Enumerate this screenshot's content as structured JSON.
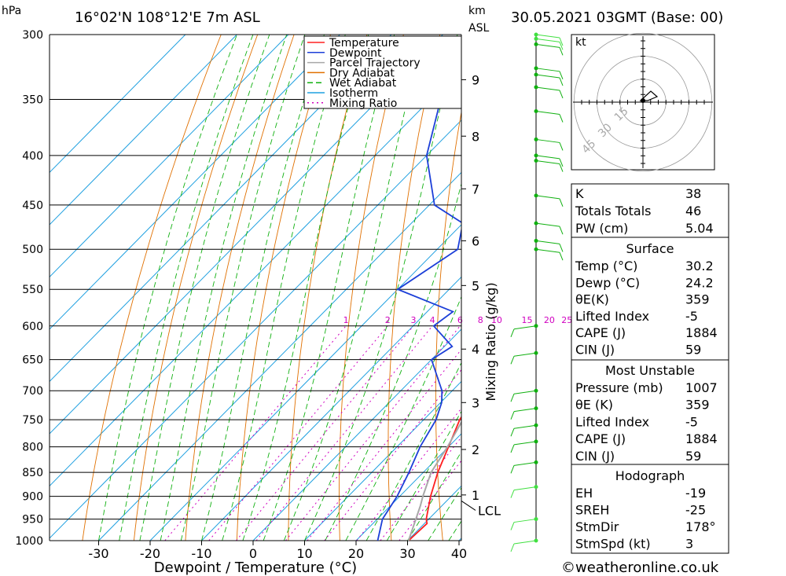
{
  "header": {
    "pressure_unit": "hPa",
    "location": "16°02'N  108°12'E  7m  ASL",
    "height_unit": "km",
    "height_unit2": "ASL",
    "datetime": "30.05.2021  03GMT  (Base: 00)"
  },
  "footer": {
    "credit": "©weatheronline.co.uk"
  },
  "colors": {
    "temperature": "#ff2020",
    "dewpoint": "#1c3fd8",
    "parcel": "#a8a8a8",
    "dry_adiabat": "#e07000",
    "wet_adiabat": "#10b010",
    "isotherm": "#1fa0e0",
    "mixing_ratio": "#d000c0"
  },
  "chart_data": {
    "type": "line",
    "title": "Skew-T log-P sounding",
    "xlabel": "Dewpoint / Temperature (°C)",
    "ylabel": "hPa",
    "right_label": "Mixing Ratio (g/kg)",
    "xlim": [
      -40,
      40
    ],
    "ylim": [
      1000,
      300
    ],
    "x_ticks": [
      "-30",
      "-20",
      "-10",
      "0",
      "10",
      "20",
      "30",
      "40"
    ],
    "x_tick_values": [
      -30,
      -20,
      -10,
      0,
      10,
      20,
      30,
      40
    ],
    "pressure_levels": [
      300,
      350,
      400,
      450,
      500,
      550,
      600,
      650,
      700,
      750,
      800,
      850,
      900,
      950,
      1000
    ],
    "pressure_labels": [
      "300",
      "350",
      "400",
      "450",
      "500",
      "550",
      "600",
      "650",
      "700",
      "750",
      "800",
      "850",
      "900",
      "950",
      "1000"
    ],
    "height_km_labels": [
      "9",
      "8",
      "7",
      "6",
      "5",
      "4",
      "3",
      "2",
      "1"
    ],
    "height_km_pressures": [
      334,
      382,
      433,
      490,
      545,
      634,
      720,
      805,
      897
    ],
    "lcl_label": "LCL",
    "lcl_pressure": 920,
    "mixing_ratio_labels": [
      "1",
      "2",
      "3",
      "4",
      "6",
      "8",
      "10",
      "15",
      "20",
      "25"
    ],
    "mixing_ratio_values": [
      1,
      2,
      3,
      4,
      6,
      8,
      10,
      15,
      20,
      25
    ],
    "legend": [
      "Temperature",
      "Dewpoint",
      "Parcel Trajectory",
      "Dry Adiabat",
      "Wet Adiabat",
      "Isotherm",
      "Mixing Ratio"
    ],
    "legend_position": "top-right",
    "series": [
      {
        "name": "Temperature",
        "points": [
          [
            1000,
            30.2
          ],
          [
            960,
            30.5
          ],
          [
            950,
            29.5
          ],
          [
            900,
            26
          ],
          [
            850,
            22.8
          ],
          [
            800,
            20
          ],
          [
            750,
            17
          ],
          [
            720,
            15.8
          ],
          [
            700,
            15
          ],
          [
            650,
            11.5
          ],
          [
            600,
            8.5
          ],
          [
            570,
            6.5
          ],
          [
            550,
            8
          ],
          [
            500,
            4
          ],
          [
            450,
            0
          ],
          [
            430,
            -2.5
          ],
          [
            400,
            -8
          ],
          [
            370,
            -13
          ]
        ]
      },
      {
        "name": "Dewpoint",
        "points": [
          [
            1000,
            24.2
          ],
          [
            950,
            21
          ],
          [
            900,
            19.5
          ],
          [
            850,
            17.2
          ],
          [
            800,
            14.5
          ],
          [
            750,
            12.4
          ],
          [
            720,
            10.2
          ],
          [
            700,
            8
          ],
          [
            650,
            0
          ],
          [
            630,
            1.5
          ],
          [
            600,
            -6
          ],
          [
            580,
            -5
          ],
          [
            550,
            -20
          ],
          [
            500,
            -16
          ],
          [
            470,
            -20
          ],
          [
            450,
            -29
          ],
          [
            400,
            -40
          ],
          [
            350,
            -48
          ],
          [
            330,
            -58
          ],
          [
            310,
            -53
          ],
          [
            300,
            -55
          ]
        ]
      },
      {
        "name": "Parcel Trajectory",
        "points": [
          [
            1000,
            30.2
          ],
          [
            920,
            25.8
          ],
          [
            900,
            24.5
          ],
          [
            850,
            21.5
          ],
          [
            800,
            19.8
          ],
          [
            750,
            17.6
          ],
          [
            700,
            15.2
          ],
          [
            650,
            12.4
          ],
          [
            600,
            9.2
          ],
          [
            550,
            5.5
          ],
          [
            500,
            1.2
          ],
          [
            450,
            -3.6
          ],
          [
            400,
            -9.4
          ],
          [
            370,
            -13.5
          ]
        ]
      }
    ]
  },
  "indices": {
    "title": "kt",
    "basic": [
      {
        "label": "K",
        "value": "38"
      },
      {
        "label": "Totals Totals",
        "value": "46"
      },
      {
        "label": "PW (cm)",
        "value": "5.04"
      }
    ],
    "surface": {
      "title": "Surface",
      "rows": [
        {
          "label": "Temp (°C)",
          "value": "30.2"
        },
        {
          "label": "Dewp (°C)",
          "value": "24.2"
        },
        {
          "label": "θE(K)",
          "value": "359"
        },
        {
          "label": "Lifted Index",
          "value": "-5"
        },
        {
          "label": "CAPE (J)",
          "value": "1884"
        },
        {
          "label": "CIN (J)",
          "value": "59"
        }
      ]
    },
    "most_unstable": {
      "title": "Most Unstable",
      "rows": [
        {
          "label": "Pressure (mb)",
          "value": "1007"
        },
        {
          "label": "θE (K)",
          "value": "359"
        },
        {
          "label": "Lifted Index",
          "value": "-5"
        },
        {
          "label": "CAPE (J)",
          "value": "1884"
        },
        {
          "label": "CIN (J)",
          "value": "59"
        }
      ]
    },
    "hodograph": {
      "title": "Hodograph",
      "rows": [
        {
          "label": "EH",
          "value": "-19"
        },
        {
          "label": "SREH",
          "value": "-25"
        },
        {
          "label": "StmDir",
          "value": "178°"
        },
        {
          "label": "StmSpd (kt)",
          "value": "3"
        }
      ]
    }
  },
  "hodo": {
    "ring_labels": [
      "15",
      "30",
      "45"
    ],
    "ring_speeds": [
      15,
      30,
      45
    ]
  }
}
